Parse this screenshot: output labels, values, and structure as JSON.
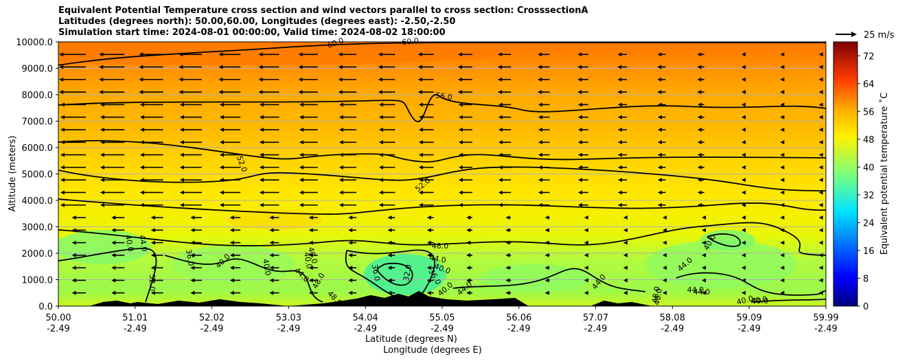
{
  "header": {
    "line1": "Equivalent Potential Temperature cross section and wind vectors parallel to cross section: CrosssectionA",
    "line2": "Latitudes (degrees north): 50.00,60.00, Longitudes (degrees east): -2.50,-2.50",
    "line3": "Simulation start time: 2024-08-01 00:00:00, Valid time: 2024-08-02 18:00:00"
  },
  "chart_data": {
    "type": "contour",
    "title": "Equivalent Potential Temperature cross section and wind vectors parallel to cross section: CrosssectionA",
    "ylabel": "Altitude (meters)",
    "xlabel_line1": "Latitude (degrees N)",
    "xlabel_line2": "Longitude (degrees E)",
    "ylim": [
      0,
      10000
    ],
    "xlim": [
      50.0,
      59.99
    ],
    "y_ticks": [
      "0.0",
      "1000.0",
      "2000.0",
      "3000.0",
      "4000.0",
      "5000.0",
      "6000.0",
      "7000.0",
      "8000.0",
      "9000.0",
      "10000.0"
    ],
    "x_ticks": [
      {
        "lat": "50.00",
        "lon": "-2.49"
      },
      {
        "lat": "51.01",
        "lon": "-2.49"
      },
      {
        "lat": "52.02",
        "lon": "-2.49"
      },
      {
        "lat": "53.03",
        "lon": "-2.49"
      },
      {
        "lat": "54.04",
        "lon": "-2.49"
      },
      {
        "lat": "55.05",
        "lon": "-2.49"
      },
      {
        "lat": "56.06",
        "lon": "-2.49"
      },
      {
        "lat": "57.07",
        "lon": "-2.49"
      },
      {
        "lat": "58.08",
        "lon": "-2.49"
      },
      {
        "lat": "59.09",
        "lon": "-2.49"
      },
      {
        "lat": "59.99",
        "lon": "-2.49"
      }
    ],
    "colorbar": {
      "label": "Equivalent potential temperature $^\\circ$C",
      "label_display": "Equivalent potential temperature ˚C",
      "range": [
        0,
        76
      ],
      "ticks": [
        "0",
        "8",
        "16",
        "24",
        "32",
        "40",
        "48",
        "56",
        "64",
        "72"
      ]
    },
    "wind_key": {
      "label": "25 m/s",
      "speed": 25
    },
    "contour_labels": [
      "60.0",
      "60.0",
      "56.0",
      "52.0",
      "52.0",
      "48.0",
      "44.0",
      "40.0",
      "40.0",
      "44.0",
      "36.0",
      "52.0",
      "40.0",
      "40.0",
      "40.0",
      "44.0",
      "48.0",
      "48.0",
      "36.0",
      "32.0",
      "36.0",
      "40.0",
      "44.0",
      "40.0",
      "44.0",
      "44.0",
      "48.0",
      "44.0",
      "40.0",
      "40.0",
      "40.0",
      "44.0",
      "48.0",
      "40.0"
    ],
    "theta_e_profile": [
      {
        "alt": 0,
        "value": 46
      },
      {
        "alt": 1000,
        "value": 42
      },
      {
        "alt": 2000,
        "value": 45
      },
      {
        "alt": 3000,
        "value": 49
      },
      {
        "alt": 4000,
        "value": 50
      },
      {
        "alt": 5000,
        "value": 51
      },
      {
        "alt": 6000,
        "value": 53
      },
      {
        "alt": 7000,
        "value": 55
      },
      {
        "alt": 8000,
        "value": 57
      },
      {
        "alt": 9000,
        "value": 59
      },
      {
        "alt": 10000,
        "value": 61
      }
    ]
  }
}
